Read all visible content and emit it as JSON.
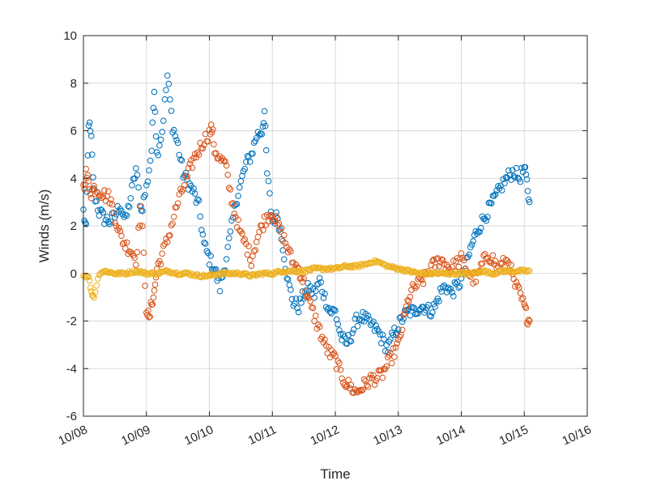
{
  "chart_data": {
    "type": "scatter",
    "title": "",
    "xlabel": "Time",
    "ylabel": "Winds (m/s)",
    "xlim": [
      "10/08",
      "10/16"
    ],
    "ylim": [
      -6,
      10
    ],
    "yticks": [
      -6,
      -4,
      -2,
      0,
      2,
      4,
      6,
      8,
      10
    ],
    "xticks": [
      "10/08",
      "10/09",
      "10/10",
      "10/11",
      "10/12",
      "10/13",
      "10/14",
      "10/15",
      "10/16"
    ],
    "grid": true,
    "marker": "open-circle",
    "series": [
      {
        "color": "#0072bd",
        "points": [
          [
            "10/08 00:00",
            2.6
          ],
          [
            "10/08 01:00",
            1.8
          ],
          [
            "10/08 02:00",
            6.4
          ],
          [
            "10/08 03:00",
            5.6
          ],
          [
            "10/08 04:00",
            3.4
          ],
          [
            "10/08 06:00",
            2.6
          ],
          [
            "10/08 08:00",
            2.3
          ],
          [
            "10/08 10:00",
            2.2
          ],
          [
            "10/08 12:00",
            2.4
          ],
          [
            "10/08 14:00",
            2.9
          ],
          [
            "10/08 16:00",
            2.2
          ],
          [
            "10/08 18:00",
            3.2
          ],
          [
            "10/08 20:00",
            4.4
          ],
          [
            "10/08 22:00",
            2.6
          ],
          [
            "10/09 00:00",
            3.6
          ],
          [
            "10/09 02:00",
            5.2
          ],
          [
            "10/09 03:00",
            7.9
          ],
          [
            "10/09 04:00",
            5.0
          ],
          [
            "10/09 06:00",
            6.0
          ],
          [
            "10/09 08:00",
            8.3
          ],
          [
            "10/09 10:00",
            6.2
          ],
          [
            "10/09 12:00",
            5.4
          ],
          [
            "10/09 14:00",
            4.2
          ],
          [
            "10/09 16:00",
            3.8
          ],
          [
            "10/09 18:00",
            3.4
          ],
          [
            "10/09 20:00",
            2.8
          ],
          [
            "10/09 22:00",
            1.2
          ],
          [
            "10/10 00:00",
            0.6
          ],
          [
            "10/10 02:00",
            0.2
          ],
          [
            "10/10 04:00",
            -0.6
          ],
          [
            "10/10 06:00",
            0.4
          ],
          [
            "10/10 08:00",
            1.6
          ],
          [
            "10/10 10:00",
            3.0
          ],
          [
            "10/10 12:00",
            3.8
          ],
          [
            "10/10 14:00",
            4.6
          ],
          [
            "10/10 16:00",
            5.0
          ],
          [
            "10/10 18:00",
            5.8
          ],
          [
            "10/10 20:00",
            6.0
          ],
          [
            "10/10 21:00",
            6.8
          ],
          [
            "10/10 22:00",
            4.2
          ],
          [
            "10/11 00:00",
            2.2
          ],
          [
            "10/11 02:00",
            2.4
          ],
          [
            "10/11 04:00",
            1.2
          ],
          [
            "10/11 06:00",
            -0.4
          ],
          [
            "10/11 08:00",
            -1.2
          ],
          [
            "10/11 10:00",
            -1.4
          ],
          [
            "10/11 12:00",
            -0.9
          ],
          [
            "10/11 14:00",
            -0.6
          ],
          [
            "10/11 16:00",
            -0.9
          ],
          [
            "10/11 18:00",
            -0.3
          ],
          [
            "10/11 20:00",
            -1.0
          ],
          [
            "10/11 22:00",
            -1.6
          ],
          [
            "10/12 00:00",
            -1.6
          ],
          [
            "10/12 02:00",
            -2.6
          ],
          [
            "10/12 04:00",
            -3.0
          ],
          [
            "10/12 06:00",
            -2.6
          ],
          [
            "10/12 08:00",
            -2.0
          ],
          [
            "10/12 10:00",
            -1.8
          ],
          [
            "10/12 12:00",
            -2.0
          ],
          [
            "10/12 14:00",
            -2.2
          ],
          [
            "10/12 16:00",
            -2.4
          ],
          [
            "10/12 18:00",
            -2.8
          ],
          [
            "10/12 20:00",
            -3.2
          ],
          [
            "10/12 22:00",
            -2.6
          ],
          [
            "10/13 00:00",
            -2.2
          ],
          [
            "10/13 02:00",
            -1.8
          ],
          [
            "10/13 04:00",
            -1.6
          ],
          [
            "10/13 06:00",
            -1.6
          ],
          [
            "10/13 08:00",
            -1.4
          ],
          [
            "10/13 10:00",
            -1.4
          ],
          [
            "10/13 12:00",
            -1.6
          ],
          [
            "10/13 14:00",
            -1.4
          ],
          [
            "10/13 16:00",
            -0.8
          ],
          [
            "10/13 18:00",
            -0.5
          ],
          [
            "10/13 20:00",
            -0.8
          ],
          [
            "10/13 22:00",
            -0.6
          ],
          [
            "10/14 00:00",
            -0.3
          ],
          [
            "10/14 02:00",
            0.4
          ],
          [
            "10/14 04:00",
            1.2
          ],
          [
            "10/14 06:00",
            1.8
          ],
          [
            "10/14 08:00",
            2.2
          ],
          [
            "10/14 10:00",
            2.6
          ],
          [
            "10/14 12:00",
            3.0
          ],
          [
            "10/14 14:00",
            3.4
          ],
          [
            "10/14 16:00",
            3.8
          ],
          [
            "10/14 18:00",
            4.1
          ],
          [
            "10/14 20:00",
            4.3
          ],
          [
            "10/14 22:00",
            4.0
          ],
          [
            "10/15 00:00",
            4.4
          ],
          [
            "10/15 01:00",
            3.8
          ],
          [
            "10/15 02:00",
            3.0
          ]
        ]
      },
      {
        "color": "#d95319",
        "points": [
          [
            "10/08 00:00",
            3.6
          ],
          [
            "10/08 01:00",
            4.2
          ],
          [
            "10/08 02:00",
            3.8
          ],
          [
            "10/08 03:00",
            3.4
          ],
          [
            "10/08 04:00",
            3.6
          ],
          [
            "10/08 06:00",
            3.5
          ],
          [
            "10/08 08:00",
            3.3
          ],
          [
            "10/08 10:00",
            3.2
          ],
          [
            "10/08 12:00",
            2.4
          ],
          [
            "10/08 14:00",
            1.6
          ],
          [
            "10/08 16:00",
            1.2
          ],
          [
            "10/08 18:00",
            1.0
          ],
          [
            "10/08 20:00",
            0.6
          ],
          [
            "10/08 22:00",
            2.8
          ],
          [
            "10/09 00:00",
            -1.4
          ],
          [
            "10/09 01:00",
            -2.0
          ],
          [
            "10/09 02:00",
            -1.2
          ],
          [
            "10/09 03:00",
            -0.8
          ],
          [
            "10/09 04:00",
            0.2
          ],
          [
            "10/09 06:00",
            0.8
          ],
          [
            "10/09 08:00",
            1.4
          ],
          [
            "10/09 10:00",
            2.2
          ],
          [
            "10/09 12:00",
            3.0
          ],
          [
            "10/09 14:00",
            3.6
          ],
          [
            "10/09 16:00",
            4.2
          ],
          [
            "10/09 18:00",
            4.8
          ],
          [
            "10/09 20:00",
            5.2
          ],
          [
            "10/09 22:00",
            5.6
          ],
          [
            "10/10 00:00",
            5.9
          ],
          [
            "10/10 01:00",
            6.1
          ],
          [
            "10/10 02:00",
            5.2
          ],
          [
            "10/10 04:00",
            4.8
          ],
          [
            "10/10 06:00",
            4.6
          ],
          [
            "10/10 08:00",
            3.4
          ],
          [
            "10/10 10:00",
            2.4
          ],
          [
            "10/10 12:00",
            1.6
          ],
          [
            "10/10 14:00",
            1.2
          ],
          [
            "10/10 16:00",
            0.6
          ],
          [
            "10/10 18:00",
            1.4
          ],
          [
            "10/10 20:00",
            2.0
          ],
          [
            "10/10 22:00",
            2.4
          ],
          [
            "10/11 00:00",
            2.6
          ],
          [
            "10/11 02:00",
            2.0
          ],
          [
            "10/11 04:00",
            1.6
          ],
          [
            "10/11 06:00",
            1.0
          ],
          [
            "10/11 08:00",
            0.4
          ],
          [
            "10/11 10:00",
            0.2
          ],
          [
            "10/11 12:00",
            -0.4
          ],
          [
            "10/11 14:00",
            -1.2
          ],
          [
            "10/11 16:00",
            -1.8
          ],
          [
            "10/11 18:00",
            -2.4
          ],
          [
            "10/11 20:00",
            -3.0
          ],
          [
            "10/11 22:00",
            -3.4
          ],
          [
            "10/12 00:00",
            -3.6
          ],
          [
            "10/12 02:00",
            -4.2
          ],
          [
            "10/12 04:00",
            -4.6
          ],
          [
            "10/12 06:00",
            -4.8
          ],
          [
            "10/12 08:00",
            -5.0
          ],
          [
            "10/12 10:00",
            -4.8
          ],
          [
            "10/12 12:00",
            -4.6
          ],
          [
            "10/12 14:00",
            -4.4
          ],
          [
            "10/12 16:00",
            -4.4
          ],
          [
            "10/12 18:00",
            -4.2
          ],
          [
            "10/12 20:00",
            -3.8
          ],
          [
            "10/12 22:00",
            -3.4
          ],
          [
            "10/13 00:00",
            -3.0
          ],
          [
            "10/13 02:00",
            -2.0
          ],
          [
            "10/13 04:00",
            -1.0
          ],
          [
            "10/13 06:00",
            -0.6
          ],
          [
            "10/13 08:00",
            -0.4
          ],
          [
            "10/13 10:00",
            -0.2
          ],
          [
            "10/13 12:00",
            0.2
          ],
          [
            "10/13 14:00",
            0.4
          ],
          [
            "10/13 16:00",
            0.6
          ],
          [
            "10/13 18:00",
            0.4
          ],
          [
            "10/13 20:00",
            0.2
          ],
          [
            "10/13 22:00",
            0.4
          ],
          [
            "10/14 00:00",
            0.6
          ],
          [
            "10/14 02:00",
            0.2
          ],
          [
            "10/14 04:00",
            -0.2
          ],
          [
            "10/14 06:00",
            -0.2
          ],
          [
            "10/14 08:00",
            0.4
          ],
          [
            "10/14 10:00",
            0.8
          ],
          [
            "10/14 12:00",
            0.6
          ],
          [
            "10/14 14:00",
            0.2
          ],
          [
            "10/14 16:00",
            0.4
          ],
          [
            "10/14 18:00",
            0.6
          ],
          [
            "10/14 20:00",
            -0.4
          ],
          [
            "10/14 22:00",
            -0.8
          ],
          [
            "10/15 00:00",
            -1.4
          ],
          [
            "10/15 01:00",
            -1.8
          ],
          [
            "10/15 02:00",
            -2.0
          ]
        ]
      },
      {
        "color": "#edb120",
        "points": [
          [
            "10/08 00:00",
            -0.1
          ],
          [
            "10/08 02:00",
            -0.1
          ],
          [
            "10/08 03:00",
            -0.8
          ],
          [
            "10/08 04:00",
            -1.0
          ],
          [
            "10/08 06:00",
            0.0
          ],
          [
            "10/08 08:00",
            0.1
          ],
          [
            "10/08 12:00",
            0.0
          ],
          [
            "10/08 16:00",
            0.0
          ],
          [
            "10/08 20:00",
            0.1
          ],
          [
            "10/09 00:00",
            0.0
          ],
          [
            "10/09 04:00",
            0.0
          ],
          [
            "10/09 08:00",
            0.1
          ],
          [
            "10/09 12:00",
            0.0
          ],
          [
            "10/09 16:00",
            0.0
          ],
          [
            "10/09 20:00",
            -0.1
          ],
          [
            "10/10 00:00",
            -0.1
          ],
          [
            "10/10 04:00",
            0.0
          ],
          [
            "10/10 08:00",
            0.0
          ],
          [
            "10/10 12:00",
            0.0
          ],
          [
            "10/10 16:00",
            -0.1
          ],
          [
            "10/10 20:00",
            0.0
          ],
          [
            "10/11 00:00",
            0.0
          ],
          [
            "10/11 04:00",
            0.1
          ],
          [
            "10/11 08:00",
            0.1
          ],
          [
            "10/11 12:00",
            0.1
          ],
          [
            "10/11 16:00",
            0.2
          ],
          [
            "10/11 20:00",
            0.2
          ],
          [
            "10/12 00:00",
            0.2
          ],
          [
            "10/12 04:00",
            0.3
          ],
          [
            "10/12 08:00",
            0.3
          ],
          [
            "10/12 12:00",
            0.4
          ],
          [
            "10/12 14:00",
            0.5
          ],
          [
            "10/12 16:00",
            0.5
          ],
          [
            "10/12 18:00",
            0.4
          ],
          [
            "10/12 20:00",
            0.3
          ],
          [
            "10/13 00:00",
            0.2
          ],
          [
            "10/13 04:00",
            0.1
          ],
          [
            "10/13 08:00",
            0.0
          ],
          [
            "10/13 12:00",
            0.0
          ],
          [
            "10/13 16:00",
            0.0
          ],
          [
            "10/13 20:00",
            0.0
          ],
          [
            "10/14 00:00",
            0.0
          ],
          [
            "10/14 04:00",
            0.0
          ],
          [
            "10/14 08:00",
            0.1
          ],
          [
            "10/14 12:00",
            0.0
          ],
          [
            "10/14 16:00",
            0.1
          ],
          [
            "10/14 20:00",
            0.1
          ],
          [
            "10/15 00:00",
            0.1
          ],
          [
            "10/15 02:00",
            0.1
          ]
        ]
      }
    ]
  }
}
